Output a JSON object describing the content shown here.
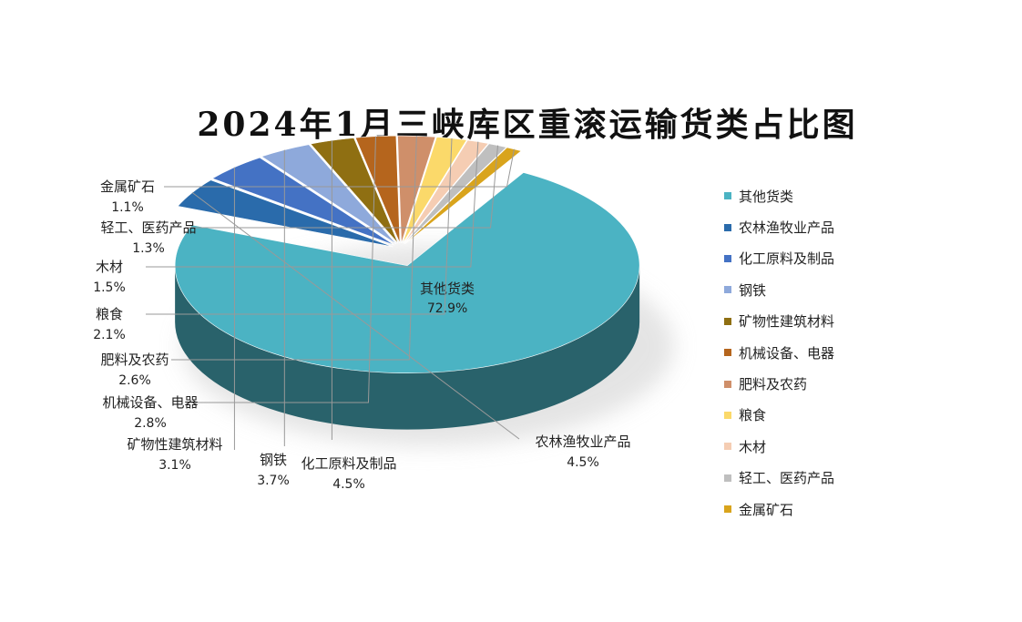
{
  "chart_data": {
    "type": "pie",
    "title": "2024年1月三峡库区重滚运输货类占比图",
    "unit": "%",
    "slices": [
      {
        "name": "其他货类",
        "value": 72.9,
        "label": "72.9%",
        "color": "#4bb3c3"
      },
      {
        "name": "农林渔牧业产品",
        "value": 4.5,
        "label": "4.5%",
        "color": "#2a6bab"
      },
      {
        "name": "化工原料及制品",
        "value": 4.5,
        "label": "4.5%",
        "color": "#4472c4"
      },
      {
        "name": "钢铁",
        "value": 3.7,
        "label": "3.7%",
        "color": "#8ea9db"
      },
      {
        "name": "矿物性建筑材料",
        "value": 3.1,
        "label": "3.1%",
        "color": "#8f6f12"
      },
      {
        "name": "机械设备、电器",
        "value": 2.8,
        "label": "2.8%",
        "color": "#b5651d"
      },
      {
        "name": "肥料及农药",
        "value": 2.6,
        "label": "2.6%",
        "color": "#cf8f6a"
      },
      {
        "name": "粮食",
        "value": 2.1,
        "label": "2.1%",
        "color": "#fbd96a"
      },
      {
        "name": "木材",
        "value": 1.5,
        "label": "1.5%",
        "color": "#f5cdb3"
      },
      {
        "name": "轻工、医药产品",
        "value": 1.3,
        "label": "1.3%",
        "color": "#bfbfbf"
      },
      {
        "name": "金属矿石",
        "value": 1.1,
        "label": "1.1%",
        "color": "#d9a41c"
      }
    ],
    "legend_position": "right"
  }
}
